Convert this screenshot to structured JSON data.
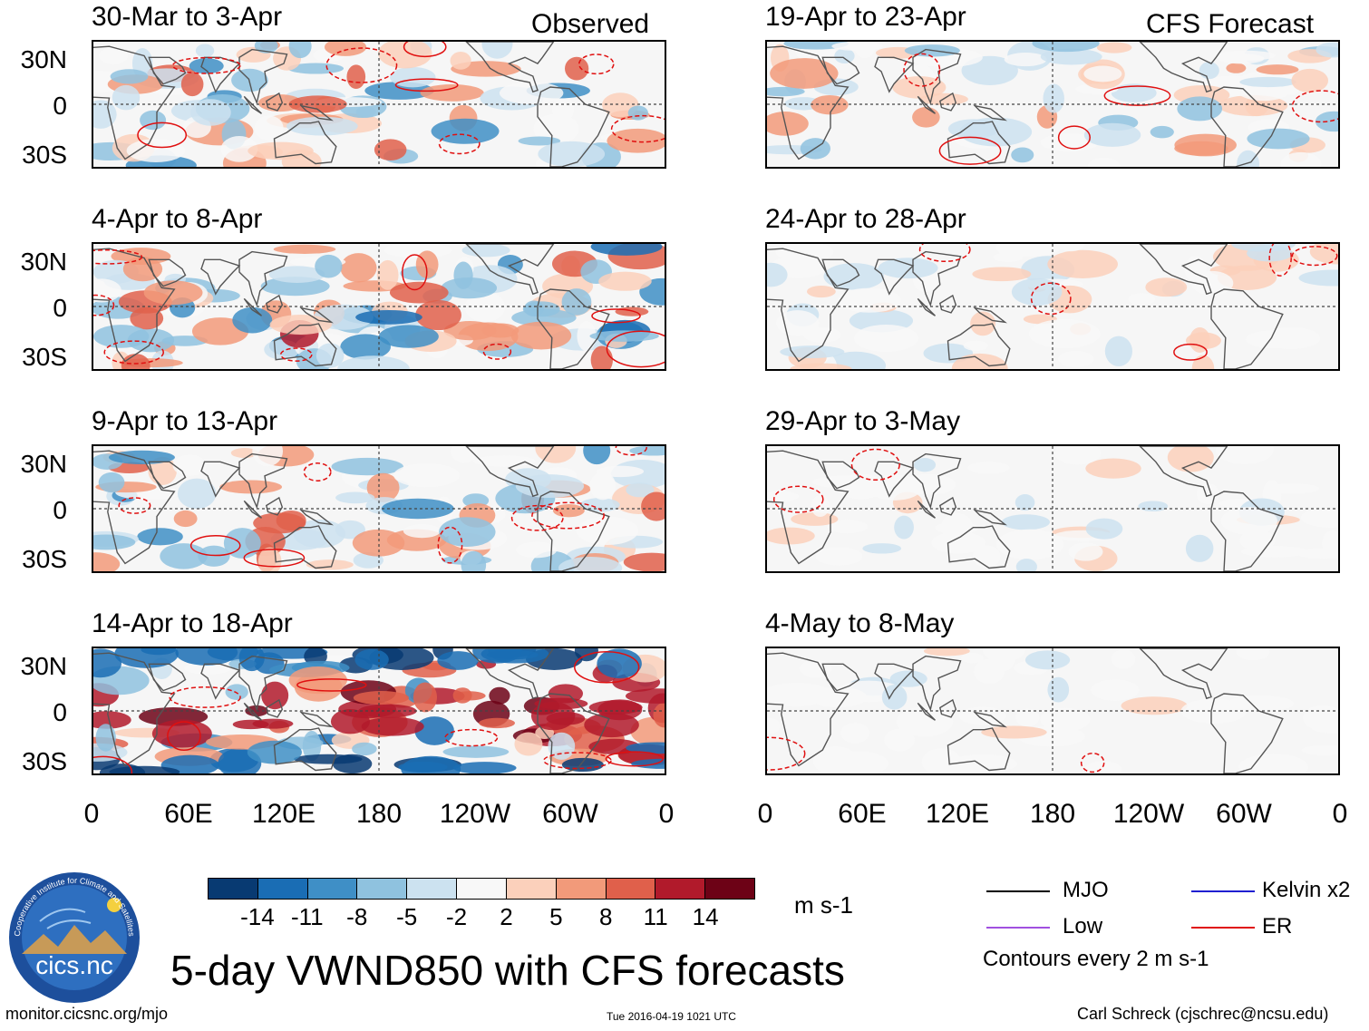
{
  "headers": {
    "observed": "Observed",
    "forecast": "CFS Forecast"
  },
  "panels": {
    "obs": [
      {
        "title": "30-Mar to 3-Apr"
      },
      {
        "title": "4-Apr to 8-Apr"
      },
      {
        "title": "9-Apr to 13-Apr"
      },
      {
        "title": "14-Apr to 18-Apr"
      }
    ],
    "fcst": [
      {
        "title": "19-Apr to 23-Apr"
      },
      {
        "title": "24-Apr to 28-Apr"
      },
      {
        "title": "29-Apr to 3-May"
      },
      {
        "title": "4-May to 8-May"
      }
    ]
  },
  "axes": {
    "y_labels": [
      "30N",
      "0",
      "30S"
    ],
    "x_labels": [
      "0",
      "60E",
      "120E",
      "180",
      "120W",
      "60W",
      "0"
    ]
  },
  "colorbar": {
    "ticks": [
      "-14",
      "-11",
      "-8",
      "-5",
      "-2",
      "2",
      "5",
      "8",
      "11",
      "14"
    ],
    "colors": [
      "#083a72",
      "#1a6db4",
      "#3f8fc6",
      "#8fc2df",
      "#cce2f0",
      "#f8f8f8",
      "#fbd0bb",
      "#f29a7a",
      "#e0604b",
      "#b11a2b",
      "#6d0216"
    ],
    "units": "m s-1"
  },
  "legend": {
    "items": [
      {
        "label": "MJO",
        "color": "#000000"
      },
      {
        "label": "Kelvin x2",
        "color": "#1f1fd0"
      },
      {
        "label": "Low",
        "color": "#a050e0"
      },
      {
        "label": "ER",
        "color": "#e01010"
      }
    ],
    "contours_note": "Contours every 2 m s-1"
  },
  "title": "5-day VWND850 with CFS forecasts",
  "logo_text": "cics.nc",
  "logo_ring_text": "Cooperative Institute for Climate and Satellites",
  "footer": {
    "url": "monitor.cicsnc.org/mjo",
    "timestamp": "Tue 2016-04-19 1021 UTC",
    "credit": "Carl Schreck (cjschrec@ncsu.edu)"
  }
}
